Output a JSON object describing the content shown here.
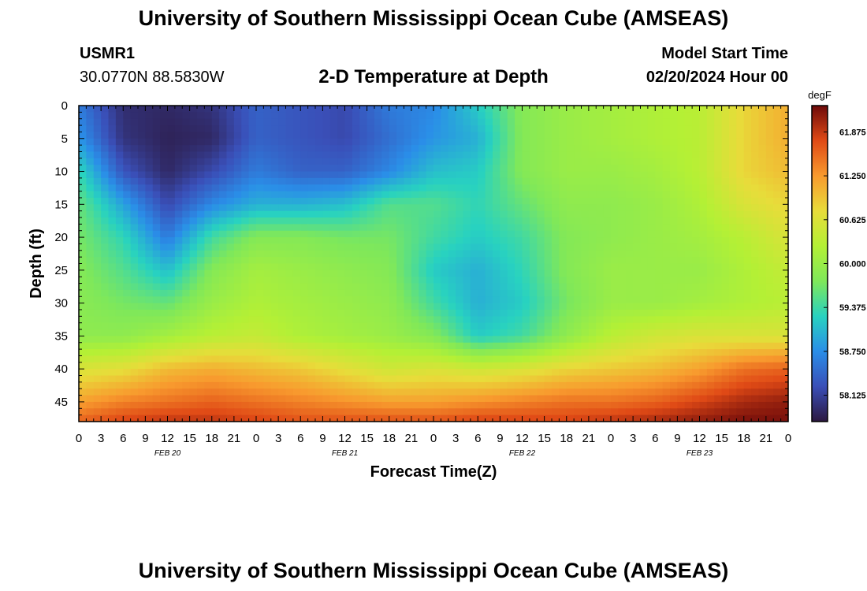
{
  "header": {
    "title": "University of Southern Mississippi Ocean Cube (AMSEAS)",
    "station": "USMR1",
    "coords": "30.0770N  88.5830W",
    "model_start_label": "Model Start Time",
    "model_start_value": "02/20/2024 Hour 00"
  },
  "footer": {
    "title": "University of Southern Mississippi Ocean Cube (AMSEAS)"
  },
  "chart_data": {
    "type": "heatmap",
    "title": "2-D Temperature at Depth",
    "xlabel": "Forecast Time(Z)",
    "ylabel": "Depth (ft)",
    "units": "degF",
    "colors": [
      "#2c1840",
      "#3a4fb8",
      "#2a8ee8",
      "#28d2c0",
      "#7fe85a",
      "#b4f035",
      "#e8dc3a",
      "#f89a2e",
      "#e04a16",
      "#6e0a0a"
    ],
    "x_hours": [
      0,
      3,
      6,
      9,
      12,
      15,
      18,
      21,
      24,
      27,
      30,
      33,
      36,
      39,
      42,
      45,
      48,
      51,
      54,
      57,
      60,
      63,
      66,
      69,
      72,
      75,
      78,
      81,
      84,
      87,
      90,
      93,
      96
    ],
    "x_tick_labels": [
      "0",
      "3",
      "6",
      "9",
      "12",
      "15",
      "18",
      "21",
      "0",
      "3",
      "6",
      "9",
      "12",
      "15",
      "18",
      "21",
      "0",
      "3",
      "6",
      "9",
      "12",
      "15",
      "18",
      "21",
      "0",
      "3",
      "6",
      "9",
      "12",
      "15",
      "18",
      "21",
      "0"
    ],
    "date_labels": [
      {
        "text": "FEB 20",
        "hour": 12
      },
      {
        "text": "FEB 21",
        "hour": 36
      },
      {
        "text": "FEB 22",
        "hour": 60
      },
      {
        "text": "FEB 23",
        "hour": 84
      }
    ],
    "xlim": [
      0,
      96
    ],
    "y_ticks": [
      0,
      5,
      10,
      15,
      20,
      25,
      30,
      35,
      40,
      45
    ],
    "ylim": [
      0,
      48
    ],
    "colorbar": {
      "ticks": [
        58.125,
        58.75,
        59.375,
        60.0,
        60.625,
        61.25,
        61.875
      ],
      "tick_labels": [
        "58.125",
        "58.750",
        "59.375",
        "60.000",
        "60.625",
        "61.250",
        "61.875"
      ],
      "range": [
        57.75,
        62.25
      ]
    },
    "grid_depths": [
      0,
      5,
      10,
      15,
      20,
      25,
      30,
      35,
      40,
      45,
      48
    ],
    "grid_hours": [
      0,
      6,
      12,
      18,
      24,
      30,
      36,
      42,
      48,
      54,
      60,
      66,
      72,
      78,
      84,
      90,
      96
    ],
    "values": [
      [
        58.6,
        57.95,
        57.9,
        58.0,
        58.4,
        58.3,
        58.2,
        58.6,
        58.7,
        59.2,
        59.8,
        60.0,
        60.1,
        60.2,
        60.3,
        60.8,
        61.1
      ],
      [
        58.8,
        58.0,
        57.85,
        57.9,
        58.4,
        58.3,
        58.2,
        58.5,
        58.8,
        59.0,
        59.8,
        60.0,
        60.1,
        60.2,
        60.3,
        60.8,
        61.1
      ],
      [
        59.3,
        58.3,
        57.9,
        58.2,
        58.6,
        58.4,
        58.4,
        58.7,
        59.1,
        59.2,
        59.8,
        60.0,
        60.0,
        60.1,
        60.3,
        60.8,
        61.0
      ],
      [
        59.6,
        58.9,
        58.2,
        58.7,
        59.0,
        59.0,
        59.1,
        59.5,
        59.5,
        59.3,
        59.6,
        59.9,
        59.9,
        60.0,
        60.2,
        60.6,
        60.8
      ],
      [
        59.7,
        59.3,
        58.6,
        59.4,
        59.8,
        59.8,
        59.7,
        59.7,
        59.4,
        59.2,
        59.4,
        59.8,
        59.9,
        60.0,
        60.1,
        60.3,
        60.6
      ],
      [
        59.8,
        59.5,
        59.1,
        59.8,
        60.1,
        60.0,
        59.9,
        59.8,
        59.2,
        59.0,
        59.3,
        59.8,
        60.0,
        60.0,
        60.0,
        60.2,
        60.4
      ],
      [
        59.85,
        59.7,
        59.6,
        60.0,
        60.2,
        60.1,
        60.0,
        59.9,
        59.4,
        59.0,
        59.2,
        59.7,
        60.0,
        60.0,
        60.1,
        60.2,
        60.3
      ],
      [
        59.9,
        59.9,
        60.1,
        60.3,
        60.4,
        60.2,
        60.1,
        60.0,
        59.8,
        59.2,
        59.4,
        59.9,
        60.3,
        60.5,
        60.6,
        60.6,
        60.6
      ],
      [
        60.6,
        60.7,
        61.0,
        61.1,
        61.0,
        60.9,
        60.7,
        60.5,
        60.6,
        60.5,
        60.6,
        60.8,
        60.9,
        61.0,
        61.2,
        61.5,
        61.6
      ],
      [
        61.2,
        61.4,
        61.5,
        61.6,
        61.5,
        61.4,
        61.3,
        61.2,
        61.2,
        61.3,
        61.4,
        61.5,
        61.5,
        61.6,
        61.8,
        62.0,
        62.1
      ],
      [
        61.6,
        61.8,
        61.9,
        61.9,
        61.8,
        61.7,
        61.7,
        61.7,
        61.7,
        61.8,
        61.8,
        61.8,
        61.9,
        62.0,
        62.1,
        62.2,
        62.2
      ]
    ]
  }
}
